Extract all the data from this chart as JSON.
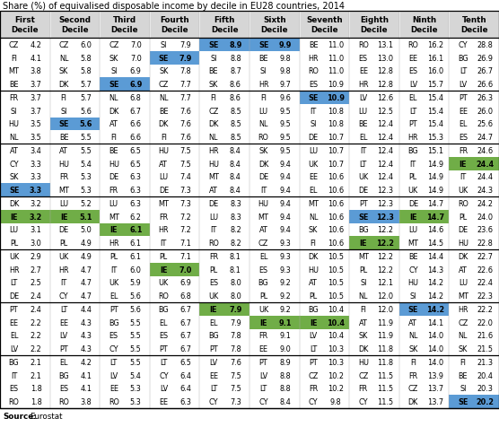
{
  "title": "Share (%) of equivalised disposable income by decile in EU28 countries, 2014",
  "col_headers": [
    "First\nDecile",
    "Second\nDecile",
    "Third\nDecile",
    "Fourth\nDecile",
    "Fifth\nDecile",
    "Sixth\nDecile",
    "Seventh\nDecile",
    "Eighth\nDecile",
    "Ninth\nDecile",
    "Tenth\nDecile"
  ],
  "rows": [
    [
      [
        "CZ",
        4.2
      ],
      [
        "CZ",
        6.0
      ],
      [
        "CZ",
        7.0
      ],
      [
        "SI",
        7.9
      ],
      [
        "SE",
        8.9
      ],
      [
        "SE",
        9.9
      ],
      [
        "BE",
        11.0
      ],
      [
        "RO",
        13.1
      ],
      [
        "RO",
        16.2
      ],
      [
        "CY",
        28.8
      ]
    ],
    [
      [
        "FI",
        4.1
      ],
      [
        "NL",
        5.8
      ],
      [
        "SK",
        7.0
      ],
      [
        "SE",
        7.9
      ],
      [
        "SI",
        8.8
      ],
      [
        "BE",
        9.8
      ],
      [
        "HR",
        11.0
      ],
      [
        "ES",
        13.0
      ],
      [
        "EE",
        16.1
      ],
      [
        "BG",
        26.9
      ]
    ],
    [
      [
        "MT",
        3.8
      ],
      [
        "SK",
        5.8
      ],
      [
        "SI",
        6.9
      ],
      [
        "SK",
        7.8
      ],
      [
        "BE",
        8.7
      ],
      [
        "SI",
        9.8
      ],
      [
        "RO",
        11.0
      ],
      [
        "EE",
        12.8
      ],
      [
        "ES",
        16.0
      ],
      [
        "LT",
        26.7
      ]
    ],
    [
      [
        "BE",
        3.7
      ],
      [
        "DK",
        5.7
      ],
      [
        "SE",
        6.9
      ],
      [
        "CZ",
        7.7
      ],
      [
        "SK",
        8.6
      ],
      [
        "HR",
        9.7
      ],
      [
        "ES",
        10.9
      ],
      [
        "HR",
        12.8
      ],
      [
        "LV",
        15.7
      ],
      [
        "LV",
        26.6
      ]
    ],
    [
      [
        "FR",
        3.7
      ],
      [
        "FI",
        5.7
      ],
      [
        "NL",
        6.8
      ],
      [
        "NL",
        7.7
      ],
      [
        "FI",
        8.6
      ],
      [
        "FI",
        9.6
      ],
      [
        "SE",
        10.9
      ],
      [
        "LV",
        12.6
      ],
      [
        "EL",
        15.4
      ],
      [
        "PT",
        26.3
      ]
    ],
    [
      [
        "SI",
        3.7
      ],
      [
        "SI",
        5.6
      ],
      [
        "DK",
        6.7
      ],
      [
        "BE",
        7.6
      ],
      [
        "CZ",
        8.5
      ],
      [
        "LU",
        9.5
      ],
      [
        "IT",
        10.8
      ],
      [
        "LU",
        12.5
      ],
      [
        "LT",
        15.4
      ],
      [
        "EE",
        26.0
      ]
    ],
    [
      [
        "HU",
        3.5
      ],
      [
        "SE",
        5.6
      ],
      [
        "AT",
        6.6
      ],
      [
        "DK",
        7.6
      ],
      [
        "DK",
        8.5
      ],
      [
        "NL",
        9.5
      ],
      [
        "SI",
        10.8
      ],
      [
        "BE",
        12.4
      ],
      [
        "PT",
        15.4
      ],
      [
        "EL",
        25.6
      ]
    ],
    [
      [
        "NL",
        3.5
      ],
      [
        "BE",
        5.5
      ],
      [
        "FI",
        6.6
      ],
      [
        "FI",
        7.6
      ],
      [
        "NL",
        8.5
      ],
      [
        "RO",
        9.5
      ],
      [
        "DE",
        10.7
      ],
      [
        "EL",
        12.4
      ],
      [
        "HR",
        15.3
      ],
      [
        "ES",
        24.7
      ]
    ],
    [
      [
        "AT",
        3.4
      ],
      [
        "AT",
        5.5
      ],
      [
        "BE",
        6.5
      ],
      [
        "HU",
        7.5
      ],
      [
        "HR",
        8.4
      ],
      [
        "SK",
        9.5
      ],
      [
        "LU",
        10.7
      ],
      [
        "IT",
        12.4
      ],
      [
        "BG",
        15.1
      ],
      [
        "FR",
        24.6
      ]
    ],
    [
      [
        "CY",
        3.3
      ],
      [
        "HU",
        5.4
      ],
      [
        "HU",
        6.5
      ],
      [
        "AT",
        7.5
      ],
      [
        "HU",
        8.4
      ],
      [
        "DK",
        9.4
      ],
      [
        "UK",
        10.7
      ],
      [
        "LT",
        12.4
      ],
      [
        "IT",
        14.9
      ],
      [
        "IE",
        24.4
      ]
    ],
    [
      [
        "SK",
        3.3
      ],
      [
        "FR",
        5.3
      ],
      [
        "DE",
        6.3
      ],
      [
        "LU",
        7.4
      ],
      [
        "MT",
        8.4
      ],
      [
        "DE",
        9.4
      ],
      [
        "EE",
        10.6
      ],
      [
        "UK",
        12.4
      ],
      [
        "PL",
        14.9
      ],
      [
        "IT",
        24.4
      ]
    ],
    [
      [
        "SE",
        3.3
      ],
      [
        "MT",
        5.3
      ],
      [
        "FR",
        6.3
      ],
      [
        "DE",
        7.3
      ],
      [
        "AT",
        8.4
      ],
      [
        "IT",
        9.4
      ],
      [
        "EL",
        10.6
      ],
      [
        "DE",
        12.3
      ],
      [
        "UK",
        14.9
      ],
      [
        "UK",
        24.3
      ]
    ],
    [
      [
        "DK",
        3.2
      ],
      [
        "LU",
        5.2
      ],
      [
        "LU",
        6.3
      ],
      [
        "MT",
        7.3
      ],
      [
        "DE",
        8.3
      ],
      [
        "HU",
        9.4
      ],
      [
        "MT",
        10.6
      ],
      [
        "PT",
        12.3
      ],
      [
        "DE",
        14.7
      ],
      [
        "RO",
        24.2
      ]
    ],
    [
      [
        "IE",
        3.2
      ],
      [
        "IE",
        5.1
      ],
      [
        "MT",
        6.2
      ],
      [
        "FR",
        7.2
      ],
      [
        "LU",
        8.3
      ],
      [
        "MT",
        9.4
      ],
      [
        "NL",
        10.6
      ],
      [
        "SE",
        12.3
      ],
      [
        "IE",
        14.7
      ],
      [
        "PL",
        24.0
      ]
    ],
    [
      [
        "LU",
        3.1
      ],
      [
        "DE",
        5.0
      ],
      [
        "IE",
        6.1
      ],
      [
        "HR",
        7.2
      ],
      [
        "IT",
        8.2
      ],
      [
        "AT",
        9.4
      ],
      [
        "SK",
        10.6
      ],
      [
        "BG",
        12.2
      ],
      [
        "LU",
        14.6
      ],
      [
        "DE",
        23.6
      ]
    ],
    [
      [
        "PL",
        3.0
      ],
      [
        "PL",
        4.9
      ],
      [
        "HR",
        6.1
      ],
      [
        "IT",
        7.1
      ],
      [
        "RO",
        8.2
      ],
      [
        "CZ",
        9.3
      ],
      [
        "FI",
        10.6
      ],
      [
        "IE",
        12.2
      ],
      [
        "MT",
        14.5
      ],
      [
        "HU",
        22.8
      ]
    ],
    [
      [
        "UK",
        2.9
      ],
      [
        "UK",
        4.9
      ],
      [
        "PL",
        6.1
      ],
      [
        "PL",
        7.1
      ],
      [
        "FR",
        8.1
      ],
      [
        "EL",
        9.3
      ],
      [
        "DK",
        10.5
      ],
      [
        "MT",
        12.2
      ],
      [
        "BE",
        14.4
      ],
      [
        "DK",
        22.7
      ]
    ],
    [
      [
        "HR",
        2.7
      ],
      [
        "HR",
        4.7
      ],
      [
        "IT",
        6.0
      ],
      [
        "IE",
        7.0
      ],
      [
        "PL",
        8.1
      ],
      [
        "ES",
        9.3
      ],
      [
        "HU",
        10.5
      ],
      [
        "PL",
        12.2
      ],
      [
        "CY",
        14.3
      ],
      [
        "AT",
        22.6
      ]
    ],
    [
      [
        "LT",
        2.5
      ],
      [
        "IT",
        4.7
      ],
      [
        "UK",
        5.9
      ],
      [
        "UK",
        6.9
      ],
      [
        "ES",
        8.0
      ],
      [
        "BG",
        9.2
      ],
      [
        "AT",
        10.5
      ],
      [
        "SI",
        12.1
      ],
      [
        "HU",
        14.2
      ],
      [
        "LU",
        22.4
      ]
    ],
    [
      [
        "DE",
        2.4
      ],
      [
        "CY",
        4.7
      ],
      [
        "EL",
        5.6
      ],
      [
        "RO",
        6.8
      ],
      [
        "UK",
        8.0
      ],
      [
        "PL",
        9.2
      ],
      [
        "PL",
        10.5
      ],
      [
        "NL",
        12.0
      ],
      [
        "SI",
        14.2
      ],
      [
        "MT",
        22.3
      ]
    ],
    [
      [
        "PT",
        2.4
      ],
      [
        "LT",
        4.4
      ],
      [
        "PT",
        5.6
      ],
      [
        "BG",
        6.7
      ],
      [
        "IE",
        7.9
      ],
      [
        "UK",
        9.2
      ],
      [
        "BG",
        10.4
      ],
      [
        "FI",
        12.0
      ],
      [
        "SE",
        14.2
      ],
      [
        "HR",
        22.2
      ]
    ],
    [
      [
        "EE",
        2.2
      ],
      [
        "EE",
        4.3
      ],
      [
        "BG",
        5.5
      ],
      [
        "EL",
        6.7
      ],
      [
        "EL",
        7.9
      ],
      [
        "IE",
        9.1
      ],
      [
        "IE",
        10.4
      ],
      [
        "AT",
        11.9
      ],
      [
        "AT",
        14.1
      ],
      [
        "CZ",
        22.0
      ]
    ],
    [
      [
        "EL",
        2.2
      ],
      [
        "LV",
        4.3
      ],
      [
        "ES",
        5.5
      ],
      [
        "ES",
        6.7
      ],
      [
        "BG",
        7.8
      ],
      [
        "FR",
        9.1
      ],
      [
        "LV",
        10.4
      ],
      [
        "SK",
        11.9
      ],
      [
        "NL",
        14.0
      ],
      [
        "NL",
        21.6
      ]
    ],
    [
      [
        "LV",
        2.2
      ],
      [
        "PT",
        4.3
      ],
      [
        "CY",
        5.5
      ],
      [
        "PT",
        6.7
      ],
      [
        "PT",
        7.8
      ],
      [
        "EE",
        9.0
      ],
      [
        "LT",
        10.3
      ],
      [
        "DK",
        11.8
      ],
      [
        "SK",
        14.0
      ],
      [
        "SK",
        21.5
      ]
    ],
    [
      [
        "BG",
        2.1
      ],
      [
        "EL",
        4.2
      ],
      [
        "LT",
        5.5
      ],
      [
        "LT",
        6.5
      ],
      [
        "LV",
        7.6
      ],
      [
        "PT",
        8.9
      ],
      [
        "PT",
        10.3
      ],
      [
        "HU",
        11.8
      ],
      [
        "FI",
        14.0
      ],
      [
        "FI",
        21.3
      ]
    ],
    [
      [
        "IT",
        2.1
      ],
      [
        "BG",
        4.1
      ],
      [
        "LV",
        5.4
      ],
      [
        "CY",
        6.4
      ],
      [
        "EE",
        7.5
      ],
      [
        "LV",
        8.8
      ],
      [
        "CZ",
        10.2
      ],
      [
        "CZ",
        11.5
      ],
      [
        "FR",
        13.9
      ],
      [
        "BE",
        20.4
      ]
    ],
    [
      [
        "ES",
        1.8
      ],
      [
        "ES",
        4.1
      ],
      [
        "EE",
        5.3
      ],
      [
        "LV",
        6.4
      ],
      [
        "LT",
        7.5
      ],
      [
        "LT",
        8.8
      ],
      [
        "FR",
        10.2
      ],
      [
        "FR",
        11.5
      ],
      [
        "CZ",
        13.7
      ],
      [
        "SI",
        20.3
      ]
    ],
    [
      [
        "RO",
        1.8
      ],
      [
        "RO",
        3.8
      ],
      [
        "RO",
        5.3
      ],
      [
        "EE",
        6.3
      ],
      [
        "CY",
        7.3
      ],
      [
        "CY",
        8.4
      ],
      [
        "CY",
        9.8
      ],
      [
        "CY",
        11.5
      ],
      [
        "DK",
        13.7
      ],
      [
        "SE",
        20.2
      ]
    ]
  ],
  "blue_color": "#5b9bd5",
  "green_color": "#70ad47",
  "header_bg": "#d6d6d6",
  "sep_rows": [
    3,
    7,
    11,
    15,
    19,
    23,
    27
  ]
}
